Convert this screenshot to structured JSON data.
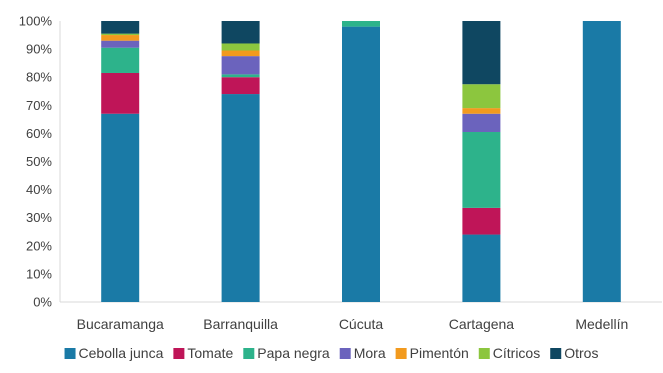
{
  "chart_data": {
    "type": "bar",
    "stacked": true,
    "orientation": "vertical",
    "categories": [
      "Bucaramanga",
      "Barranquilla",
      "Cúcuta",
      "Cartagena",
      "Medellín"
    ],
    "y_ticks": [
      "0%",
      "10%",
      "20%",
      "30%",
      "40%",
      "50%",
      "60%",
      "70%",
      "80%",
      "90%",
      "100%"
    ],
    "ylim": [
      0,
      100
    ],
    "grid": false,
    "legend_position": "bottom",
    "series": [
      {
        "name": "Cebolla junca",
        "color": "#1a7aa6",
        "values": [
          67,
          74,
          98,
          24,
          100
        ]
      },
      {
        "name": "Tomate",
        "color": "#bf1558",
        "values": [
          14.5,
          6,
          0,
          9.5,
          0
        ]
      },
      {
        "name": "Papa negra",
        "color": "#2db38b",
        "values": [
          9,
          1,
          2,
          27,
          0
        ]
      },
      {
        "name": "Mora",
        "color": "#6b63bd",
        "values": [
          2.5,
          6.5,
          0,
          6.5,
          0
        ]
      },
      {
        "name": "Pimentón",
        "color": "#f29a1e",
        "values": [
          2,
          2,
          0,
          2,
          0
        ]
      },
      {
        "name": "Cítricos",
        "color": "#8cc63e",
        "values": [
          0.5,
          2.5,
          0,
          8.5,
          0
        ]
      },
      {
        "name": "Otros",
        "color": "#0f4761",
        "values": [
          4.5,
          8,
          0,
          22.5,
          0
        ]
      }
    ]
  }
}
